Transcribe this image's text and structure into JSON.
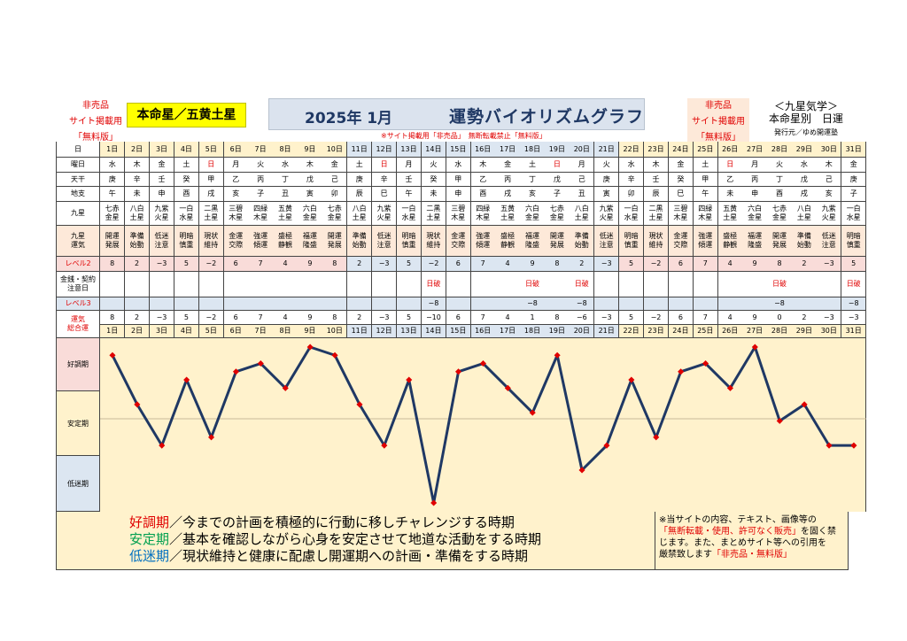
{
  "header": {
    "nonsale_left": [
      "非売品",
      "サイト掲載用",
      "「無料版」"
    ],
    "honmei": "本命星／五黄土星",
    "year_month": "2025年 1月",
    "title": "運勢バイオリズムグラフ",
    "nonsale_right": [
      "非売品",
      "サイト掲載用",
      "「無料版」"
    ],
    "kyusei": "＜九星気学＞",
    "sub": "本命星別　日運",
    "publisher": "発行元／ゆめ開運塾",
    "notice": "※サイト掲載用「非売品」　無断転載禁止「無料版」"
  },
  "row_labels": {
    "day": "日",
    "weekday": "曜日",
    "tenkan": "天干",
    "chishi": "地支",
    "kyusei": "九星",
    "unki": [
      "九星",
      "運気"
    ],
    "level2": "レベル2",
    "kinsen": [
      "金銭・契約",
      "注意日"
    ],
    "level3": "レベル3",
    "total": [
      "運気",
      "総合運"
    ]
  },
  "days": [
    "1日",
    "2日",
    "3日",
    "4日",
    "5日",
    "6日",
    "7日",
    "8日",
    "9日",
    "10日",
    "11日",
    "12日",
    "13日",
    "14日",
    "15日",
    "16日",
    "17日",
    "18日",
    "19日",
    "20日",
    "21日",
    "22日",
    "23日",
    "24日",
    "25日",
    "26日",
    "27日",
    "28日",
    "29日",
    "30日",
    "31日"
  ],
  "weekdays": [
    "水",
    "木",
    "金",
    "土",
    "日",
    "月",
    "火",
    "水",
    "木",
    "金",
    "土",
    "日",
    "月",
    "火",
    "水",
    "木",
    "金",
    "土",
    "日",
    "月",
    "火",
    "水",
    "木",
    "金",
    "土",
    "日",
    "月",
    "火",
    "水",
    "木",
    "金"
  ],
  "tenkan": [
    "庚",
    "辛",
    "壬",
    "癸",
    "甲",
    "乙",
    "丙",
    "丁",
    "戊",
    "己",
    "庚",
    "辛",
    "壬",
    "癸",
    "甲",
    "乙",
    "丙",
    "丁",
    "戊",
    "己",
    "庚",
    "辛",
    "壬",
    "癸",
    "甲",
    "乙",
    "丙",
    "丁",
    "戊",
    "己",
    "庚"
  ],
  "chishi": [
    "午",
    "未",
    "申",
    "酉",
    "戌",
    "亥",
    "子",
    "丑",
    "寅",
    "卯",
    "辰",
    "巳",
    "午",
    "未",
    "申",
    "酉",
    "戌",
    "亥",
    "子",
    "丑",
    "寅",
    "卯",
    "辰",
    "巳",
    "午",
    "未",
    "申",
    "酉",
    "戌",
    "亥",
    "子"
  ],
  "kyusei": [
    [
      "七赤",
      "金星"
    ],
    [
      "八白",
      "土星"
    ],
    [
      "九紫",
      "火星"
    ],
    [
      "一白",
      "水星"
    ],
    [
      "二黒",
      "土星"
    ],
    [
      "三碧",
      "木星"
    ],
    [
      "四緑",
      "木星"
    ],
    [
      "五黄",
      "土星"
    ],
    [
      "六白",
      "金星"
    ],
    [
      "七赤",
      "金星"
    ],
    [
      "八白",
      "土星"
    ],
    [
      "九紫",
      "火星"
    ],
    [
      "一白",
      "水星"
    ],
    [
      "二黒",
      "土星"
    ],
    [
      "三碧",
      "木星"
    ],
    [
      "四緑",
      "木星"
    ],
    [
      "五黄",
      "土星"
    ],
    [
      "六白",
      "金星"
    ],
    [
      "七赤",
      "金星"
    ],
    [
      "八白",
      "土星"
    ],
    [
      "九紫",
      "火星"
    ],
    [
      "一白",
      "水星"
    ],
    [
      "二黒",
      "土星"
    ],
    [
      "三碧",
      "木星"
    ],
    [
      "四緑",
      "木星"
    ],
    [
      "五黄",
      "土星"
    ],
    [
      "六白",
      "金星"
    ],
    [
      "七赤",
      "金星"
    ],
    [
      "八白",
      "土星"
    ],
    [
      "九紫",
      "火星"
    ],
    [
      "一白",
      "水星"
    ]
  ],
  "unki": [
    [
      "開運",
      "発展"
    ],
    [
      "準備",
      "始動"
    ],
    [
      "低迷",
      "注意"
    ],
    [
      "明暗",
      "慎重"
    ],
    [
      "現状",
      "維持"
    ],
    [
      "金運",
      "交際"
    ],
    [
      "強運",
      "傾運"
    ],
    [
      "盛極",
      "静観"
    ],
    [
      "福運",
      "隆盛"
    ],
    [
      "開運",
      "発展"
    ],
    [
      "準備",
      "始動"
    ],
    [
      "低迷",
      "注意"
    ],
    [
      "明暗",
      "慎重"
    ],
    [
      "現状",
      "維持"
    ],
    [
      "金運",
      "交際"
    ],
    [
      "強運",
      "傾運"
    ],
    [
      "盛極",
      "静観"
    ],
    [
      "福運",
      "隆盛"
    ],
    [
      "開運",
      "発展"
    ],
    [
      "準備",
      "始動"
    ],
    [
      "低迷",
      "注意"
    ],
    [
      "明暗",
      "慎重"
    ],
    [
      "現状",
      "維持"
    ],
    [
      "金運",
      "交際"
    ],
    [
      "強運",
      "傾運"
    ],
    [
      "盛極",
      "静観"
    ],
    [
      "福運",
      "隆盛"
    ],
    [
      "開運",
      "発展"
    ],
    [
      "準備",
      "始動"
    ],
    [
      "低迷",
      "注意"
    ],
    [
      "明暗",
      "慎重"
    ]
  ],
  "level2": [
    "8",
    "2",
    "−3",
    "5",
    "−2",
    "6",
    "7",
    "4",
    "9",
    "8",
    "2",
    "−3",
    "5",
    "−2",
    "6",
    "7",
    "4",
    "9",
    "8",
    "2",
    "−3",
    "5",
    "−2",
    "6",
    "7",
    "4",
    "9",
    "8",
    "2",
    "−3",
    "5"
  ],
  "kinsen": [
    "",
    "",
    "",
    "",
    "",
    "",
    "",
    "",
    "",
    "",
    "",
    "",
    "",
    "日破",
    "",
    "",
    "",
    "日破",
    "",
    "日破",
    "",
    "",
    "",
    "",
    "",
    "",
    "",
    "日破",
    "",
    "",
    "日破"
  ],
  "level3": [
    "",
    "",
    "",
    "",
    "",
    "",
    "",
    "",
    "",
    "",
    "",
    "",
    "",
    "−8",
    "",
    "",
    "",
    "−8",
    "",
    "−8",
    "",
    "",
    "",
    "",
    "",
    "",
    "",
    "−8",
    "",
    "",
    "−8"
  ],
  "total": [
    "8",
    "2",
    "−3",
    "5",
    "−2",
    "6",
    "7",
    "4",
    "9",
    "8",
    "2",
    "−3",
    "5",
    "−10",
    "6",
    "7",
    "4",
    "1",
    "8",
    "−6",
    "−3",
    "5",
    "−2",
    "6",
    "7",
    "4",
    "9",
    "0",
    "2",
    "−3",
    "−3"
  ],
  "chart_data": {
    "type": "line",
    "categories": [
      "1日",
      "2日",
      "3日",
      "4日",
      "5日",
      "6日",
      "7日",
      "8日",
      "9日",
      "10日",
      "11日",
      "12日",
      "13日",
      "14日",
      "15日",
      "16日",
      "17日",
      "18日",
      "19日",
      "20日",
      "21日",
      "22日",
      "23日",
      "24日",
      "25日",
      "26日",
      "27日",
      "28日",
      "29日",
      "30日",
      "31日"
    ],
    "values": [
      8,
      2,
      -3,
      5,
      -2,
      6,
      7,
      4,
      9,
      8,
      2,
      -3,
      5,
      -10,
      6,
      7,
      4,
      1,
      8,
      -6,
      -3,
      5,
      -2,
      6,
      7,
      4,
      9,
      0,
      2,
      -3,
      -3
    ],
    "ylim": [
      -10,
      9
    ],
    "bands": [
      "好調期",
      "安定期",
      "低迷期"
    ],
    "line_color": "#1f3864",
    "marker_color": "#e00000"
  },
  "legend": {
    "good_term": "好調期",
    "good_text": "／今までの計画を積極的に行動に移しチャレンジする時期",
    "stable_term": "安定期",
    "stable_text": "／基本を確認しながら心身を安定させて地道な活動をする時期",
    "low_term": "低迷期",
    "low_text": "／現状維持と健康に配慮し開運期への計画・準備をする時期"
  },
  "note": {
    "line1": "※当サイトの内容、テキスト、画像等の",
    "line2_red": "「無断転載・使用、許可なく販売」",
    "line2_rest": "を固く禁",
    "line3": "じます。また、まとめサイト等への引用を",
    "line4": "厳禁致します",
    "line4_red": "「非売品・無料版」"
  }
}
